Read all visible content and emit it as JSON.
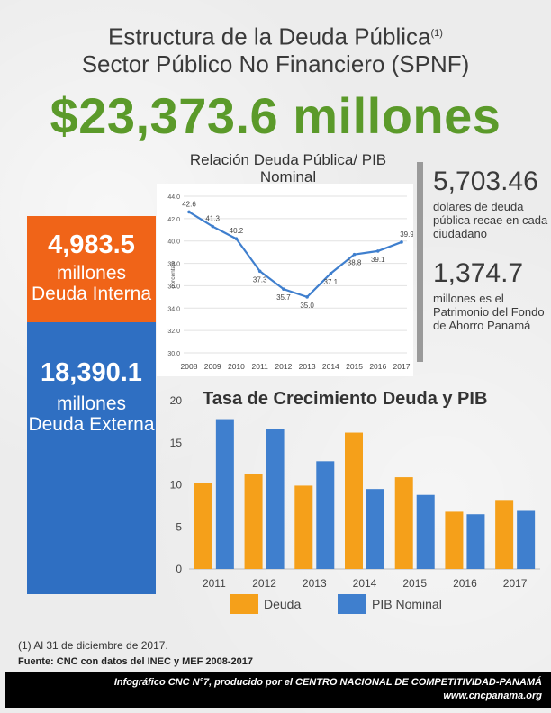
{
  "header": {
    "title_line1": "Estructura de la Deuda Pública",
    "title_sup": "(1)",
    "title_line2": "Sector Público No Financiero (SPNF)",
    "total": "$23,373.6 millones"
  },
  "debt_split": {
    "internal_value": "4,983.5",
    "internal_label": "millones Deuda Interna",
    "external_value": "18,390.1",
    "external_label": "millones Deuda Externa"
  },
  "stats": {
    "per_capita_value": "5,703.46",
    "per_capita_text": "dolares de deuda pública recae en cada ciudadano",
    "fund_value": "1,374.7",
    "fund_text": "millones es el Patrimonio del Fondo de Ahorro Panamá"
  },
  "colors": {
    "orange": "#f06418",
    "blue": "#2f6fc2",
    "green": "#5b9a2a",
    "bar_deuda": "#f5a01a",
    "bar_pib": "#3f7fce",
    "line": "#3f7fce"
  },
  "chart_data": [
    {
      "type": "line",
      "title": "Relación Deuda Pública/ PIB Nominal",
      "ylabel": "porcentaje",
      "x": [
        "2008",
        "2009",
        "2010",
        "2011",
        "2012",
        "2013",
        "2014",
        "2015",
        "2016",
        "2017"
      ],
      "values": [
        42.6,
        41.3,
        40.2,
        37.3,
        35.7,
        35.0,
        37.1,
        38.8,
        39.1,
        39.9
      ],
      "value_labels": [
        "42.6",
        "41.3",
        "40.2",
        "37.3",
        "35.7",
        "35.0",
        "37.1",
        "38.8",
        "39.1",
        "39.9"
      ],
      "yticks": [
        "44.0",
        "42.0",
        "40.0",
        "38.0",
        "36.0",
        "34.0",
        "32.0",
        "30.0"
      ],
      "ylim": [
        30,
        44
      ],
      "grid": true
    },
    {
      "type": "bar",
      "title": "Tasa de Crecimiento Deuda y PIB",
      "categories": [
        "2011",
        "2012",
        "2013",
        "2014",
        "2015",
        "2016",
        "2017"
      ],
      "series": [
        {
          "name": "Deuda",
          "values": [
            10.2,
            11.3,
            9.9,
            16.2,
            10.9,
            6.8,
            8.2
          ]
        },
        {
          "name": "PIB Nominal",
          "values": [
            17.8,
            16.6,
            12.8,
            9.5,
            8.8,
            6.5,
            6.9
          ]
        }
      ],
      "yticks": [
        "20",
        "15",
        "10",
        "5",
        "0"
      ],
      "ylim": [
        0,
        20
      ],
      "legend": "bottom"
    }
  ],
  "notes": {
    "footnote": "(1) Al 31 de diciembre de 2017.",
    "source": "Fuente: CNC con datos del INEC y MEF 2008-2017"
  },
  "footer": {
    "line1": "Infográfico CNC N°7, producido por el CENTRO NACIONAL DE COMPETITIVIDAD-PANAMÁ",
    "line2": "www.cncpanama.org"
  }
}
